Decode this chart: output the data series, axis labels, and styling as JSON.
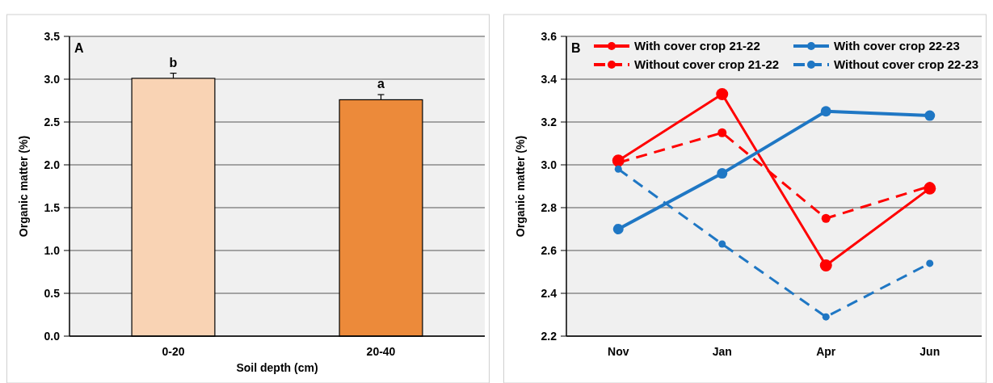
{
  "chart_data": [
    {
      "type": "bar",
      "categories": [
        "0-20",
        "20-40"
      ],
      "values": [
        3.01,
        2.76
      ],
      "colors": [
        "#f9d3b4",
        "#ec8a3a"
      ],
      "errors": [
        0.06,
        0.06
      ],
      "xlabel": "Soil depth (cm)",
      "ylabel": "Organic matter (%)",
      "ylim": [
        0,
        3.5
      ],
      "yticks": [
        {
          "value": 0,
          "label": "0.0"
        },
        {
          "value": 0.5,
          "label": "0.5"
        },
        {
          "value": 1,
          "label": "1.0"
        },
        {
          "value": 1.5,
          "label": "1.5"
        },
        {
          "value": 2,
          "label": "2.0"
        },
        {
          "value": 2.5,
          "label": "2.5"
        },
        {
          "value": 3,
          "label": "3.0"
        },
        {
          "value": 3.5,
          "label": "3.5"
        }
      ],
      "grid": "y",
      "annotations": [
        "A",
        {
          "text": "b",
          "x": "0-20",
          "y": 3.01
        },
        {
          "text": "a",
          "x": "20-40",
          "y": 2.76
        }
      ]
    },
    {
      "type": "line",
      "categories": [
        "Nov",
        "Jan",
        "Apr",
        "Jun"
      ],
      "ylabel": "Organic matter (%)",
      "ylim": [
        2.2,
        3.6
      ],
      "yticks": [
        2.2,
        2.4,
        2.6,
        2.8,
        {
          "value": 3,
          "label": "3.0"
        },
        3.2,
        3.4,
        3.6
      ],
      "grid": "y",
      "legend": "top",
      "marker": "circle",
      "annotations": [
        "B"
      ],
      "series": [
        {
          "name": "With cover crop 21-22",
          "color": "#ff0000",
          "line_style": "solid",
          "values": [
            3.02,
            3.33,
            2.53,
            2.89
          ]
        },
        {
          "name": "With cover crop 22-23",
          "color": "#1f77c4",
          "line_style": "solid",
          "values": [
            2.7,
            2.96,
            3.25,
            3.23
          ]
        },
        {
          "name": "Without cover crop 21-22",
          "color": "#ff0000",
          "line_style": "dashed",
          "values": [
            3.01,
            3.15,
            2.75,
            2.9
          ]
        },
        {
          "name": "Without cover crop 22-23",
          "color": "#1f77c4",
          "line_style": "dashed",
          "values": [
            2.98,
            2.63,
            2.29,
            2.54
          ]
        }
      ]
    }
  ]
}
